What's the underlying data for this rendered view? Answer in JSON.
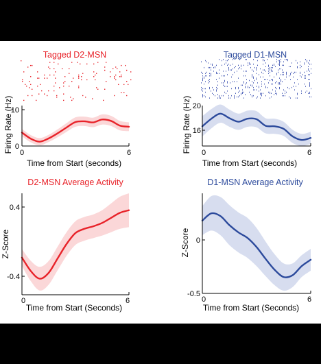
{
  "colors": {
    "d2": "#e8232a",
    "d2_band": "#f9c9cb",
    "d1": "#2c4a9c",
    "d1_band": "#c9d1ea",
    "raster_d2": "#e8232a",
    "raster_d1": "#3a4fb0"
  },
  "chart_data": [
    {
      "type": "line",
      "title": "Tagged D2-MSN",
      "xlabel": "Time from Start (seconds)",
      "ylabel": "Firing Rate (Hz)",
      "xlim": [
        0,
        6
      ],
      "ylim": [
        0,
        10
      ],
      "xticks": [
        "0",
        "6"
      ],
      "yticks": [
        "0",
        "10"
      ],
      "raster_above": true,
      "series": [
        {
          "x": [
            0,
            0.5,
            1,
            1.5,
            2,
            2.5,
            3,
            3.5,
            4,
            4.5,
            5,
            5.5,
            6
          ],
          "values": [
            3.7,
            2.0,
            1.2,
            2.1,
            3.5,
            5.1,
            6.6,
            6.8,
            6.5,
            7.3,
            6.9,
            5.6,
            5.3
          ],
          "band": [
            1.0,
            1.0,
            1.0,
            1.0,
            1.1,
            1.2,
            1.3,
            1.3,
            1.3,
            1.4,
            1.4,
            1.3,
            1.2
          ]
        }
      ]
    },
    {
      "type": "line",
      "title": "Tagged D1-MSN",
      "xlabel": "Time from Start (seconds)",
      "ylabel": "Firing Rate (Hz)",
      "xlim": [
        0,
        6
      ],
      "ylim": [
        12,
        20
      ],
      "xticks": [
        "0",
        "6"
      ],
      "yticks": [
        "16",
        "20"
      ],
      "raster_above": true,
      "series": [
        {
          "x": [
            0,
            0.5,
            1,
            1.5,
            2,
            2.5,
            3,
            3.5,
            4,
            4.5,
            5,
            5.5,
            6
          ],
          "values": [
            15.9,
            17.4,
            18.4,
            17.5,
            16.8,
            17.4,
            17.3,
            16.0,
            15.9,
            15.4,
            13.9,
            13.2,
            13.6
          ],
          "band": [
            2.0,
            1.9,
            1.8,
            1.7,
            1.6,
            1.6,
            1.6,
            1.5,
            1.5,
            1.4,
            1.3,
            1.2,
            1.2
          ]
        }
      ]
    },
    {
      "type": "line",
      "title": "D2-MSN Average Activity",
      "xlabel": "Time from Start (Seconds)",
      "ylabel": "Z-Score",
      "xlim": [
        0,
        6
      ],
      "ylim": [
        -0.6,
        0.6
      ],
      "xticks": [
        "0",
        "6"
      ],
      "yticks": [
        "-0.4",
        "0.4"
      ],
      "series": [
        {
          "x": [
            0,
            0.5,
            1,
            1.5,
            2,
            2.5,
            3,
            3.5,
            4,
            4.5,
            5,
            5.5,
            6
          ],
          "values": [
            -0.16,
            -0.32,
            -0.41,
            -0.34,
            -0.17,
            0.0,
            0.13,
            0.18,
            0.21,
            0.25,
            0.31,
            0.37,
            0.4
          ],
          "band": [
            0.1,
            0.12,
            0.14,
            0.14,
            0.14,
            0.14,
            0.14,
            0.14,
            0.14,
            0.15,
            0.17,
            0.19,
            0.2
          ]
        }
      ]
    },
    {
      "type": "line",
      "title": "D1-MSN Average Activity",
      "xlabel": "Time from Start (Seconds)",
      "ylabel": "Z-Score",
      "xlim": [
        0,
        6
      ],
      "ylim": [
        -0.5,
        0.6
      ],
      "xticks": [
        "0",
        "6"
      ],
      "yticks": [
        "-0.5",
        "0"
      ],
      "series": [
        {
          "x": [
            0,
            0.5,
            1,
            1.5,
            2,
            2.5,
            3,
            3.5,
            4,
            4.5,
            5,
            5.5,
            6
          ],
          "values": [
            0.3,
            0.38,
            0.35,
            0.25,
            0.17,
            0.11,
            0.01,
            -0.12,
            -0.24,
            -0.32,
            -0.3,
            -0.2,
            -0.13
          ],
          "band": [
            0.16,
            0.19,
            0.21,
            0.22,
            0.22,
            0.22,
            0.21,
            0.19,
            0.17,
            0.15,
            0.13,
            0.12,
            0.12
          ]
        }
      ]
    }
  ]
}
